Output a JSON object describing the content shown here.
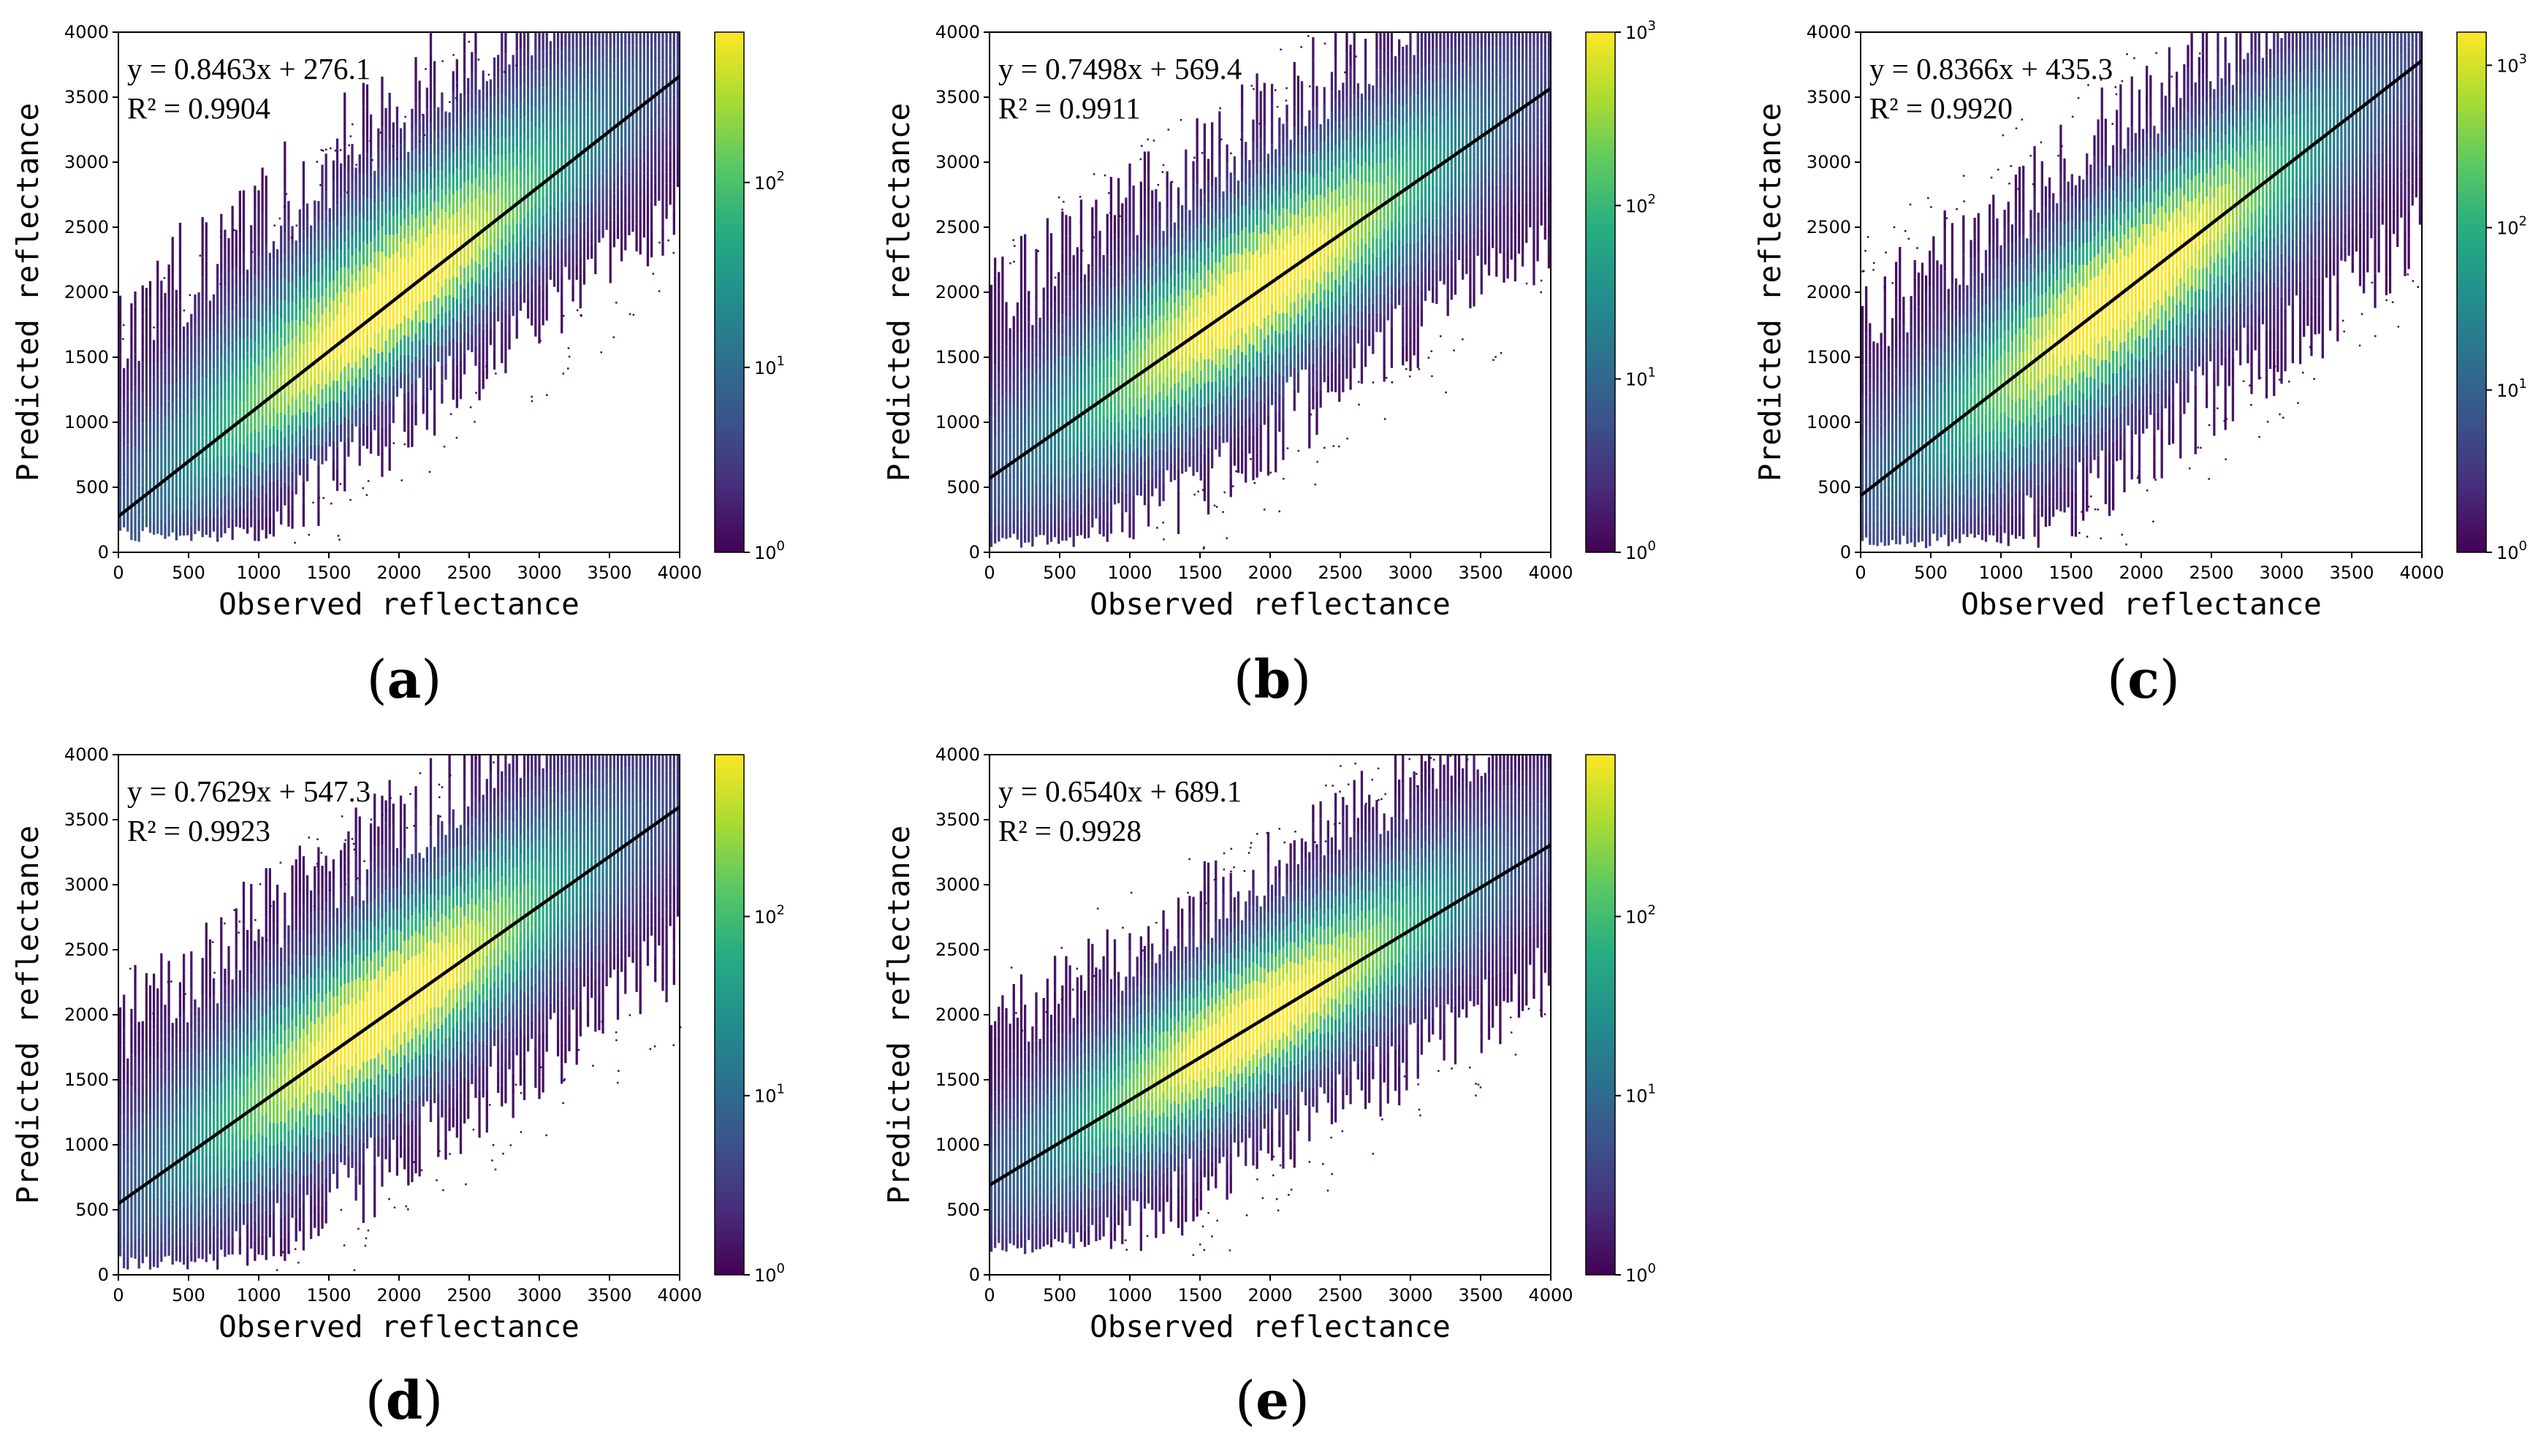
{
  "chart_data": [
    {
      "panel": "(a)",
      "panel_letter": "a",
      "type": "heatmap",
      "xlabel": "Observed reflectance",
      "ylabel": "Predicted reflectance",
      "xlim": [
        0,
        4000
      ],
      "ylim": [
        0,
        4000
      ],
      "xticks": [
        0,
        500,
        1000,
        1500,
        2000,
        2500,
        3000,
        3500,
        4000
      ],
      "yticks": [
        0,
        500,
        1000,
        1500,
        2000,
        2500,
        3000,
        3500,
        4000
      ],
      "colormap": "viridis",
      "colorbar_scale": "log",
      "colorbar_ticks": [
        1,
        10,
        100
      ],
      "colorbar_max": 650,
      "fit": {
        "slope": 0.8463,
        "intercept": 276.1,
        "r2": 0.9904
      },
      "annotation": [
        "y = 0.8463x + 276.1",
        "R² = 0.9904"
      ],
      "scatter_band": {
        "spread_below": 1300,
        "spread_above": 1900,
        "ymin": 80
      },
      "grid": false
    },
    {
      "panel": "(b)",
      "panel_letter": "b",
      "type": "heatmap",
      "xlabel": "Observed reflectance",
      "ylabel": "Predicted reflectance",
      "xlim": [
        0,
        4000
      ],
      "ylim": [
        0,
        4000
      ],
      "xticks": [
        0,
        500,
        1000,
        1500,
        2000,
        2500,
        3000,
        3500,
        4000
      ],
      "yticks": [
        0,
        500,
        1000,
        1500,
        2000,
        2500,
        3000,
        3500,
        4000
      ],
      "colormap": "viridis",
      "colorbar_scale": "log",
      "colorbar_ticks": [
        1,
        10,
        100,
        1000
      ],
      "colorbar_max": 1000,
      "fit": {
        "slope": 0.7498,
        "intercept": 569.4,
        "r2": 0.9911
      },
      "annotation": [
        "y = 0.7498x + 569.4",
        "R² = 0.9911"
      ],
      "scatter_band": {
        "spread_below": 1500,
        "spread_above": 1700,
        "ymin": 30
      },
      "grid": false
    },
    {
      "panel": "(c)",
      "panel_letter": "c",
      "type": "heatmap",
      "xlabel": "Observed reflectance",
      "ylabel": "Predicted reflectance",
      "xlim": [
        0,
        4000
      ],
      "ylim": [
        0,
        4000
      ],
      "xticks": [
        0,
        500,
        1000,
        1500,
        2000,
        2500,
        3000,
        3500,
        4000
      ],
      "yticks": [
        0,
        500,
        1000,
        1500,
        2000,
        2500,
        3000,
        3500,
        4000
      ],
      "colormap": "viridis",
      "colorbar_scale": "log",
      "colorbar_ticks": [
        1,
        10,
        100,
        1000
      ],
      "colorbar_max": 1600,
      "fit": {
        "slope": 0.8366,
        "intercept": 435.3,
        "r2": 0.992
      },
      "annotation": [
        "y = 0.8366x + 435.3",
        "R² = 0.9920"
      ],
      "scatter_band": {
        "spread_below": 1700,
        "spread_above": 1700,
        "ymin": 30
      },
      "grid": false
    },
    {
      "panel": "(d)",
      "panel_letter": "d",
      "type": "heatmap",
      "xlabel": "Observed reflectance",
      "ylabel": "Predicted reflectance",
      "xlim": [
        0,
        4000
      ],
      "ylim": [
        0,
        4000
      ],
      "xticks": [
        0,
        500,
        1000,
        1500,
        2000,
        2500,
        3000,
        3500,
        4000
      ],
      "yticks": [
        0,
        500,
        1000,
        1500,
        2000,
        2500,
        3000,
        3500,
        4000
      ],
      "colormap": "viridis",
      "colorbar_scale": "log",
      "colorbar_ticks": [
        1,
        10,
        100
      ],
      "colorbar_max": 800,
      "fit": {
        "slope": 0.7629,
        "intercept": 547.3,
        "r2": 0.9923
      },
      "annotation": [
        "y = 0.7629x + 547.3",
        "R² = 0.9923"
      ],
      "scatter_band": {
        "spread_below": 1500,
        "spread_above": 1800,
        "ymin": 40
      },
      "grid": false
    },
    {
      "panel": "(e)",
      "panel_letter": "e",
      "type": "heatmap",
      "xlabel": "Observed reflectance",
      "ylabel": "Predicted reflectance",
      "xlim": [
        0,
        4000
      ],
      "ylim": [
        0,
        4000
      ],
      "xticks": [
        0,
        500,
        1000,
        1500,
        2000,
        2500,
        3000,
        3500,
        4000
      ],
      "yticks": [
        0,
        500,
        1000,
        1500,
        2000,
        2500,
        3000,
        3500,
        4000
      ],
      "colormap": "viridis",
      "colorbar_scale": "log",
      "colorbar_ticks": [
        1,
        10,
        100
      ],
      "colorbar_max": 800,
      "fit": {
        "slope": 0.654,
        "intercept": 689.1,
        "r2": 0.9928
      },
      "annotation": [
        "y = 0.6540x + 689.1",
        "R² = 0.9928"
      ],
      "scatter_band": {
        "spread_below": 1300,
        "spread_above": 1500,
        "ymin": 150
      },
      "grid": false
    }
  ],
  "colors": {
    "fit_line": "#000000",
    "min_density": "#440154",
    "max_density": "#fde725"
  }
}
